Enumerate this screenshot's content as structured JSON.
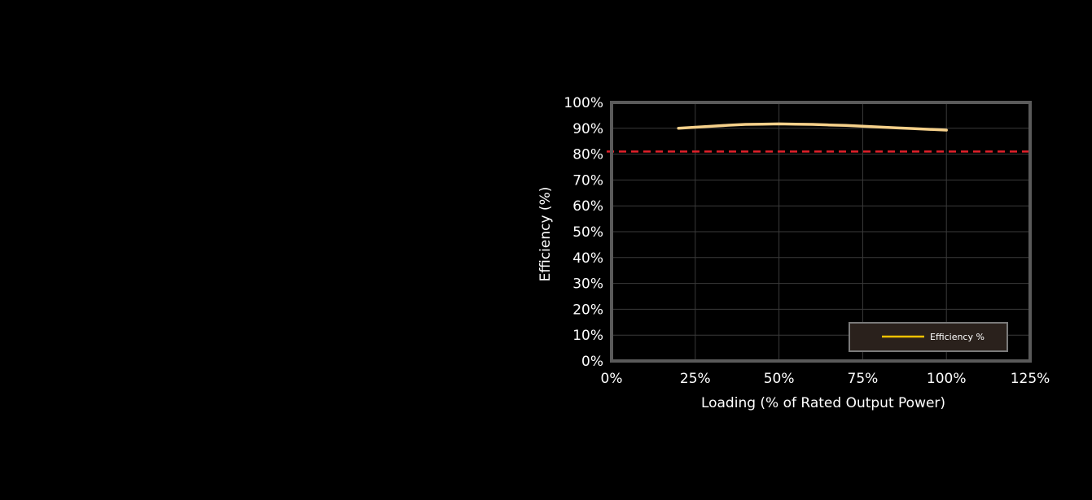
{
  "chart_data": {
    "type": "line",
    "xlabel": "Loading (% of Rated Output Power)",
    "ylabel": "Efficiency (%)",
    "xlim": [
      0,
      125
    ],
    "ylim": [
      0,
      100
    ],
    "x_ticks": [
      "0%",
      "25%",
      "50%",
      "75%",
      "100%",
      "125%"
    ],
    "y_ticks": [
      "0%",
      "10%",
      "20%",
      "30%",
      "40%",
      "50%",
      "60%",
      "70%",
      "80%",
      "90%",
      "100%"
    ],
    "grid": true,
    "legend_position": "bottom-right",
    "series": [
      {
        "name": "Efficiency %",
        "x": [
          20,
          25,
          30,
          35,
          40,
          45,
          50,
          55,
          60,
          65,
          70,
          75,
          80,
          85,
          90,
          95,
          100
        ],
        "y": [
          90.0,
          90.4,
          90.8,
          91.2,
          91.5,
          91.6,
          91.7,
          91.6,
          91.5,
          91.3,
          91.1,
          90.8,
          90.5,
          90.2,
          89.9,
          89.6,
          89.3
        ],
        "color": "#f5d08a",
        "legend_color": "#f2c200"
      }
    ],
    "reference_line": {
      "y": 81,
      "color": "#e0202a",
      "style": "dashed"
    },
    "frame_color": "#5a5a5a",
    "grid_color": "#3a3a3a",
    "legend_bg": "#2a211c"
  }
}
